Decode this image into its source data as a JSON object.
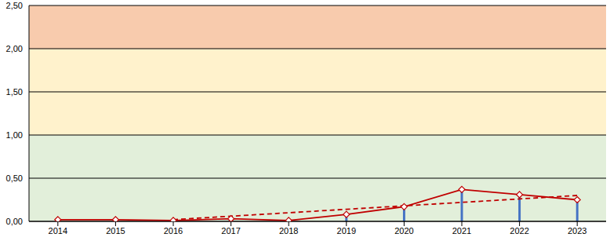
{
  "chart_data": {
    "type": "bar",
    "categories": [
      "2014",
      "2015",
      "2016",
      "2017",
      "2018",
      "2019",
      "2020",
      "2021",
      "2022",
      "2023"
    ],
    "series": [
      {
        "type": "bar",
        "color": "#4472c4",
        "values": [
          0.02,
          0.02,
          0.01,
          0.03,
          0.01,
          0.08,
          0.17,
          0.37,
          0.31,
          0.25
        ]
      },
      {
        "type": "line",
        "color": "#c00000",
        "marker": "diamond",
        "line_style": "solid",
        "values": [
          0.02,
          0.02,
          0.01,
          0.03,
          0.01,
          0.08,
          0.17,
          0.37,
          0.31,
          0.25
        ]
      },
      {
        "type": "line",
        "color": "#c00000",
        "line_style": "dashed",
        "values": [
          null,
          null,
          0.02,
          0.06,
          0.1,
          0.14,
          0.18,
          0.22,
          0.26,
          0.3
        ]
      }
    ],
    "bands": [
      {
        "from": 0,
        "to": 1,
        "color": "#e2efda"
      },
      {
        "from": 1,
        "to": 2,
        "color": "#fff2cc"
      },
      {
        "from": 2,
        "to": 2.5,
        "color": "#f8cbad"
      }
    ],
    "ylim": [
      0,
      2.5
    ],
    "yticks": [
      {
        "value": 0,
        "label": "0,00"
      },
      {
        "value": 0.5,
        "label": "0,50"
      },
      {
        "value": 1,
        "label": "1,00"
      },
      {
        "value": 1.5,
        "label": "1,50"
      },
      {
        "value": 2,
        "label": "2,00"
      },
      {
        "value": 2.5,
        "label": "2,50"
      }
    ],
    "grid": true
  }
}
